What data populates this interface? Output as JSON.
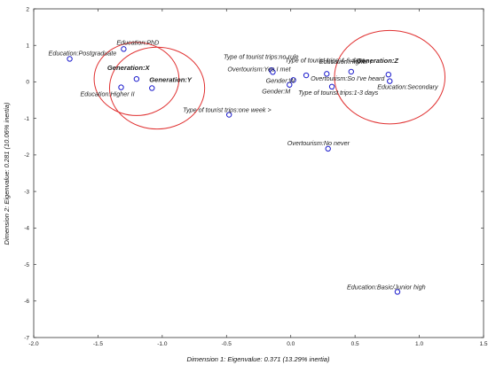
{
  "chart_data": {
    "type": "scatter",
    "xlabel": "Dimension 1: Eigenvalue: 0.371 (13.29% inertia)",
    "ylabel": "Dimension 2: Eigenvalue: 0.281 (10.06% inertia)",
    "xlim": [
      -2.0,
      1.5
    ],
    "ylim": [
      -7,
      2
    ],
    "xticks": [
      "-2.0",
      "-1.5",
      "-1.0",
      "-0.5",
      "0.0",
      "0.5",
      "1.0",
      "1.5"
    ],
    "yticks": [
      "2",
      "1",
      "0",
      "-1",
      "-2",
      "-3",
      "-4",
      "-5",
      "-6",
      "-7"
    ],
    "grid": false,
    "marker_color": "#1a1acc",
    "circle_color": "#e03030",
    "points": [
      {
        "label": "Education:PhD",
        "x": -1.3,
        "y": 0.9,
        "bold": false
      },
      {
        "label": "Education:Postgraduate",
        "x": -1.72,
        "y": 0.63,
        "bold": false
      },
      {
        "label": "Generation:X",
        "x": -1.2,
        "y": 0.08,
        "bold": true
      },
      {
        "label": "Generation:Y",
        "x": -1.08,
        "y": -0.17,
        "bold": true
      },
      {
        "label": "Education:Higher II",
        "x": -1.32,
        "y": -0.15,
        "bold": false
      },
      {
        "label": "Type of tourist trips:one week >",
        "x": -0.48,
        "y": -0.9,
        "bold": false
      },
      {
        "label": "Type of tourist trips:no rule",
        "x": -0.15,
        "y": 0.32,
        "bold": false
      },
      {
        "label": "Overtourism:Yes I met",
        "x": -0.14,
        "y": 0.27,
        "bold": false
      },
      {
        "label": "Gender:W",
        "x": 0.02,
        "y": 0.05,
        "bold": false
      },
      {
        "label": "Gender:M",
        "x": -0.01,
        "y": -0.08,
        "bold": false
      },
      {
        "label": "Overtourism:So I've heard",
        "x": 0.12,
        "y": 0.18,
        "bold": false
      },
      {
        "label": "Type of tourist trips:4-6 days",
        "x": 0.28,
        "y": 0.22,
        "bold": false
      },
      {
        "label": "Education:Higher I",
        "x": 0.47,
        "y": 0.28,
        "bold": false
      },
      {
        "label": "Type of tourist trips:1-3 days",
        "x": 0.32,
        "y": -0.13,
        "bold": false
      },
      {
        "label": "Generation:Z",
        "x": 0.76,
        "y": 0.2,
        "bold": true
      },
      {
        "label": "Education:Secondary",
        "x": 0.77,
        "y": 0.02,
        "bold": false
      },
      {
        "label": "Overtourism:No never",
        "x": 0.29,
        "y": -1.83,
        "bold": false
      },
      {
        "label": "Education:Basic/Junior high",
        "x": 0.83,
        "y": -5.75,
        "bold": false
      }
    ],
    "circles": [
      {
        "name": "Generation:X",
        "cx": -1.2,
        "cy": 0.08,
        "rx": 0.33,
        "ry": 1.0
      },
      {
        "name": "Generation:Y",
        "cx": -1.04,
        "cy": -0.17,
        "rx": 0.37,
        "ry": 1.12
      },
      {
        "name": "Generation:Z",
        "cx": 0.77,
        "cy": 0.13,
        "rx": 0.43,
        "ry": 1.28
      }
    ]
  }
}
